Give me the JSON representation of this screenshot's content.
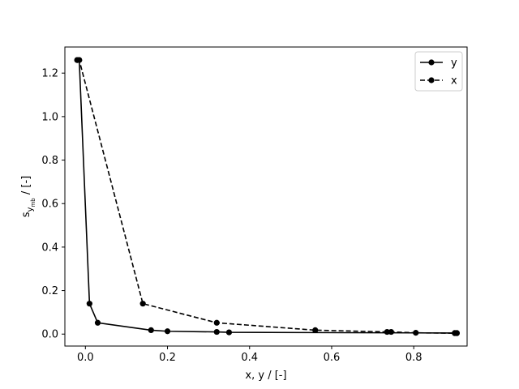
{
  "chart_data": {
    "type": "line",
    "xlabel": "x, y / [-]",
    "ylabel_main": "s",
    "ylabel_sub": "y",
    "ylabel_subsub": "mb",
    "ylabel_suffix": " / [-]",
    "xlim": [
      -0.05,
      0.93
    ],
    "ylim": [
      -0.055,
      1.32
    ],
    "xticks": [
      0.0,
      0.2,
      0.4,
      0.6,
      0.8
    ],
    "xtick_labels": [
      "0.0",
      "0.2",
      "0.4",
      "0.6",
      "0.8"
    ],
    "yticks": [
      0.0,
      0.2,
      0.4,
      0.6,
      0.8,
      1.0,
      1.2
    ],
    "ytick_labels": [
      "0.0",
      "0.2",
      "0.4",
      "0.6",
      "0.8",
      "1.0",
      "1.2"
    ],
    "legend_position": "top-right",
    "grid": false,
    "series": [
      {
        "name": "y",
        "style": "solid",
        "color": "#000000",
        "marker": "circle",
        "x": [
          -0.02,
          -0.015,
          0.01,
          0.03,
          0.16,
          0.2,
          0.32,
          0.35,
          0.9,
          0.905
        ],
        "y": [
          1.26,
          1.26,
          0.14,
          0.052,
          0.018,
          0.013,
          0.01,
          0.008,
          0.005,
          0.005
        ]
      },
      {
        "name": "x",
        "style": "dashed",
        "color": "#000000",
        "marker": "circle",
        "x": [
          -0.02,
          -0.015,
          0.14,
          0.32,
          0.56,
          0.735,
          0.745,
          0.805,
          0.9,
          0.905
        ],
        "y": [
          1.26,
          1.26,
          0.14,
          0.052,
          0.018,
          0.01,
          0.01,
          0.006,
          0.004,
          0.004
        ]
      }
    ]
  }
}
